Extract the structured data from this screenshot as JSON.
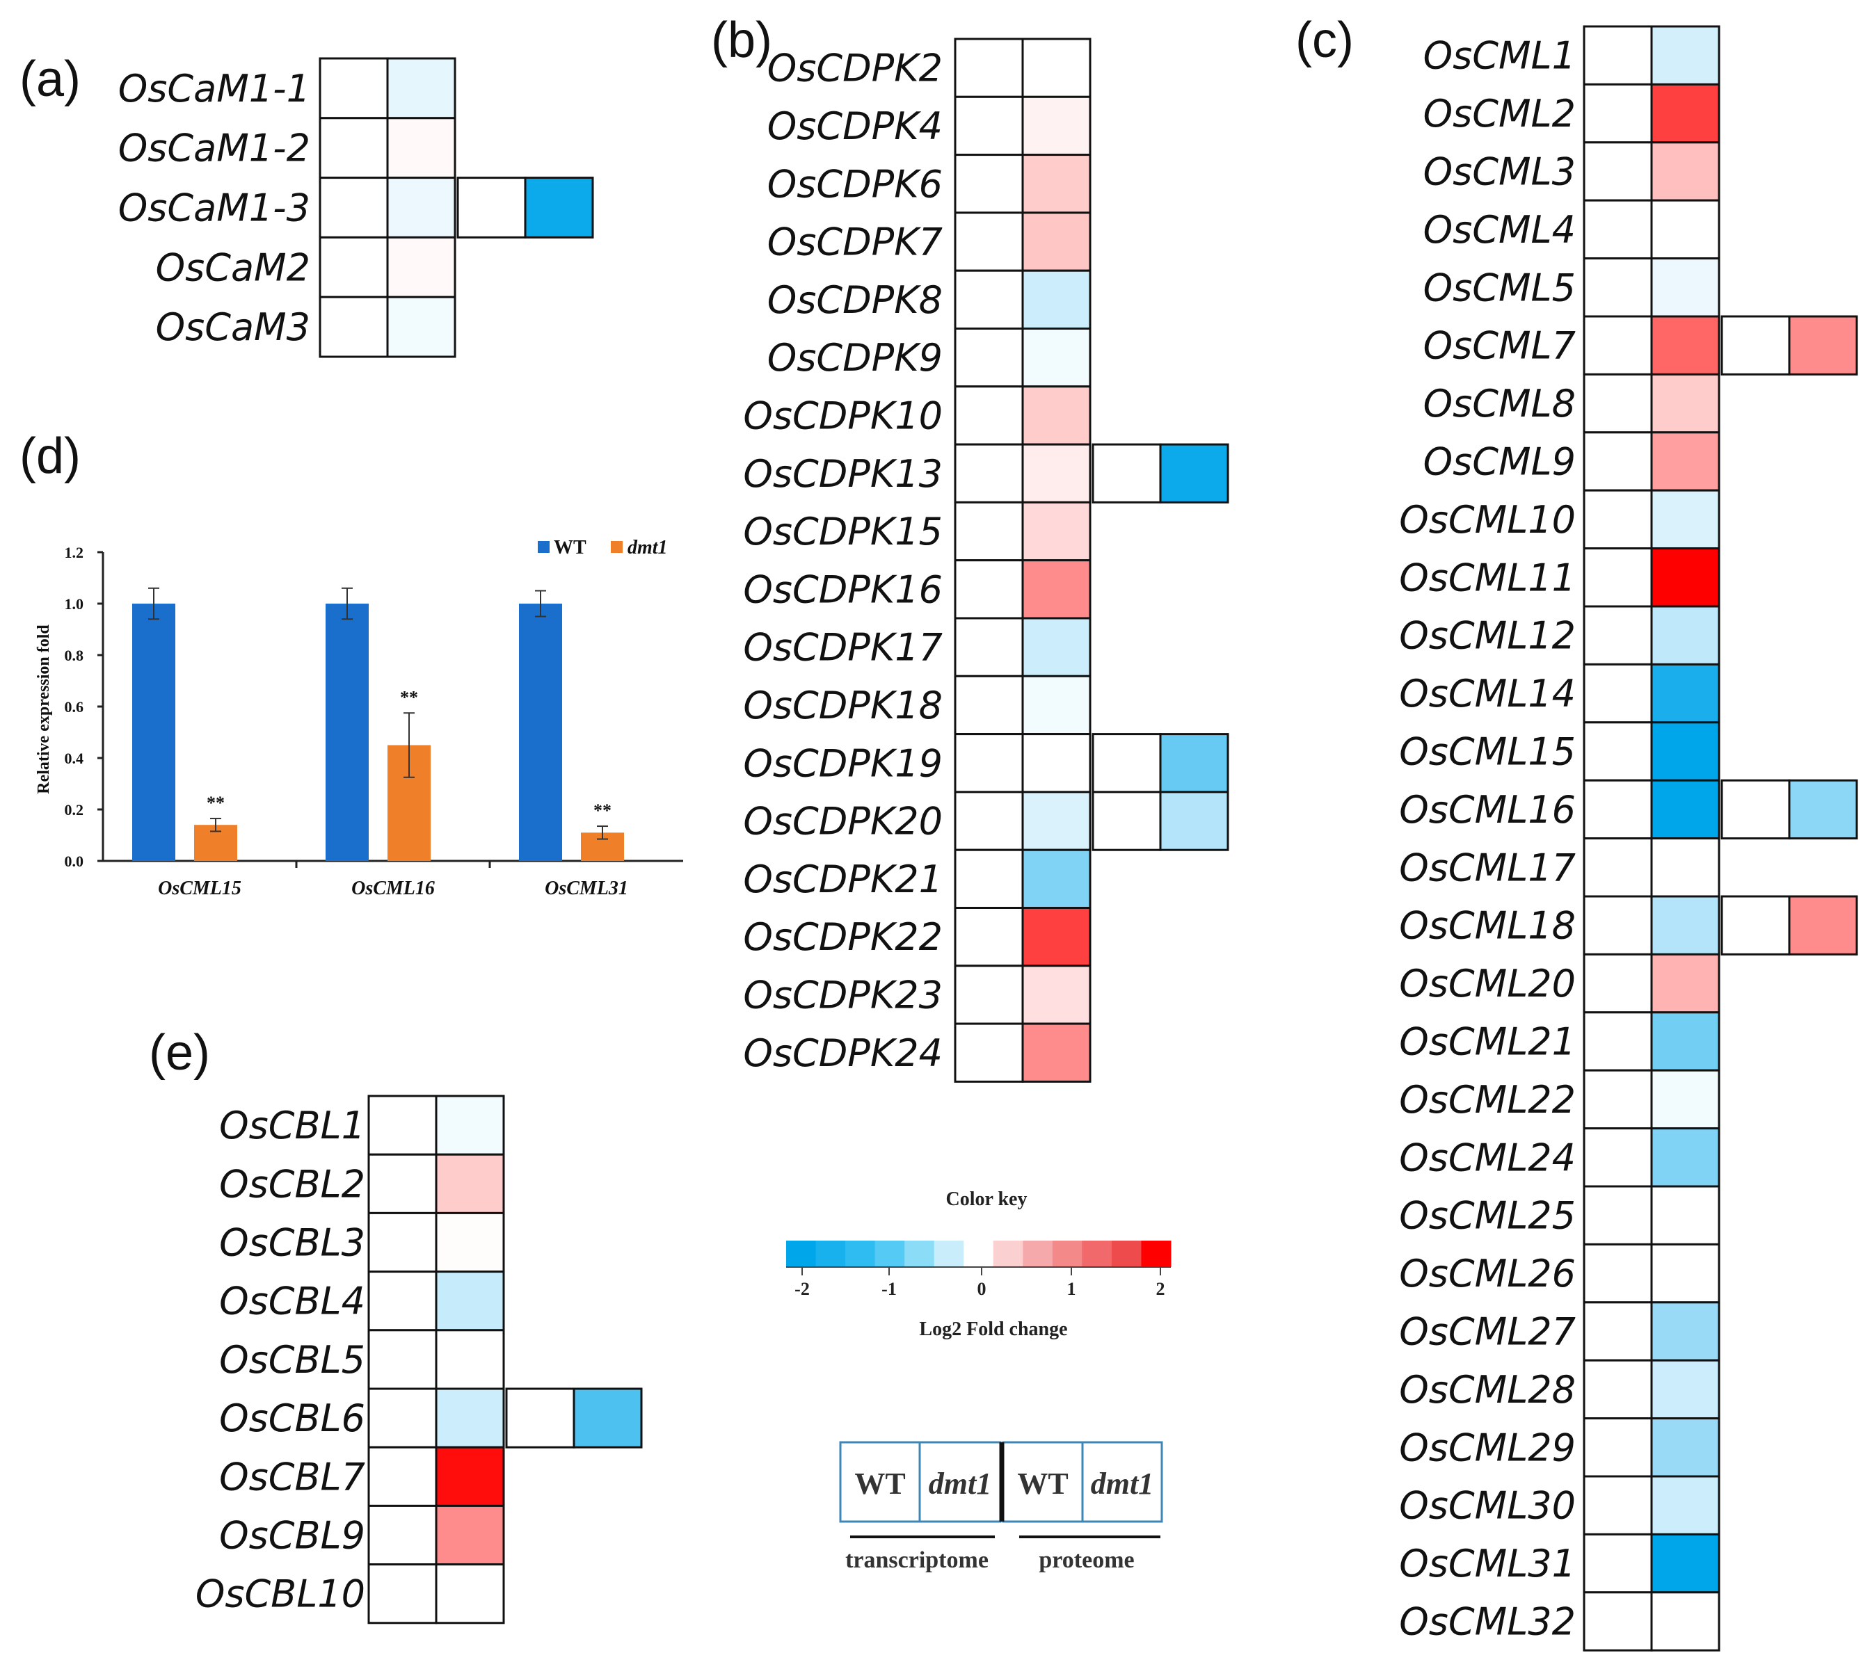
{
  "panels": {
    "a": {
      "label": "(a)"
    },
    "b": {
      "label": "(b)"
    },
    "c": {
      "label": "(c)"
    },
    "d": {
      "label": "(d)"
    },
    "e": {
      "label": "(e)"
    }
  },
  "chart_data": [
    {
      "type": "heatmap",
      "panel": "(a)",
      "columns": [
        "WT transcriptome",
        "dmt1 transcriptome",
        "WT proteome",
        "dmt1 proteome"
      ],
      "rows": [
        {
          "gene": "OsCaM1-1",
          "values": [
            0,
            -0.2,
            null,
            null
          ]
        },
        {
          "gene": "OsCaM1-2",
          "values": [
            0,
            0.05,
            null,
            null
          ]
        },
        {
          "gene": "OsCaM1-3",
          "values": [
            0,
            -0.15,
            0,
            -1.9
          ]
        },
        {
          "gene": "OsCaM2",
          "values": [
            0,
            0.05,
            null,
            null
          ]
        },
        {
          "gene": "OsCaM3",
          "values": [
            0,
            -0.1,
            null,
            null
          ]
        }
      ]
    },
    {
      "type": "heatmap",
      "panel": "(b)",
      "columns": [
        "WT transcriptome",
        "dmt1 transcriptome",
        "WT proteome",
        "dmt1 proteome"
      ],
      "rows": [
        {
          "gene": "OsCDPK2",
          "values": [
            0,
            0,
            null,
            null
          ]
        },
        {
          "gene": "OsCDPK4",
          "values": [
            0,
            0.1,
            null,
            null
          ]
        },
        {
          "gene": "OsCDPK6",
          "values": [
            0,
            0.4,
            null,
            null
          ]
        },
        {
          "gene": "OsCDPK7",
          "values": [
            0,
            0.45,
            null,
            null
          ]
        },
        {
          "gene": "OsCDPK8",
          "values": [
            0,
            -0.4,
            null,
            null
          ]
        },
        {
          "gene": "OsCDPK9",
          "values": [
            0,
            -0.1,
            null,
            null
          ]
        },
        {
          "gene": "OsCDPK10",
          "values": [
            0,
            0.4,
            null,
            null
          ]
        },
        {
          "gene": "OsCDPK13",
          "values": [
            0,
            0.15,
            0,
            -1.9
          ]
        },
        {
          "gene": "OsCDPK15",
          "values": [
            0,
            0.3,
            null,
            null
          ]
        },
        {
          "gene": "OsCDPK16",
          "values": [
            0,
            0.9,
            null,
            null
          ]
        },
        {
          "gene": "OsCDPK17",
          "values": [
            0,
            -0.4,
            null,
            null
          ]
        },
        {
          "gene": "OsCDPK18",
          "values": [
            0,
            -0.1,
            null,
            null
          ]
        },
        {
          "gene": "OsCDPK19",
          "values": [
            0,
            0,
            0,
            -1.2
          ]
        },
        {
          "gene": "OsCDPK20",
          "values": [
            0,
            -0.3,
            0,
            -0.6
          ]
        },
        {
          "gene": "OsCDPK21",
          "values": [
            0,
            -1.0,
            null,
            null
          ]
        },
        {
          "gene": "OsCDPK22",
          "values": [
            0,
            1.5,
            null,
            null
          ]
        },
        {
          "gene": "OsCDPK23",
          "values": [
            0,
            0.25,
            null,
            null
          ]
        },
        {
          "gene": "OsCDPK24",
          "values": [
            0,
            0.9,
            null,
            null
          ]
        }
      ]
    },
    {
      "type": "heatmap",
      "panel": "(c)",
      "columns": [
        "WT transcriptome",
        "dmt1 transcriptome",
        "WT proteome",
        "dmt1 proteome"
      ],
      "rows": [
        {
          "gene": "OsCML1",
          "values": [
            0,
            -0.35,
            null,
            null
          ]
        },
        {
          "gene": "OsCML2",
          "values": [
            0,
            1.5,
            null,
            null
          ]
        },
        {
          "gene": "OsCML3",
          "values": [
            0,
            0.5,
            null,
            null
          ]
        },
        {
          "gene": "OsCML4",
          "values": [
            0,
            0,
            null,
            null
          ]
        },
        {
          "gene": "OsCML5",
          "values": [
            0,
            -0.15,
            null,
            null
          ]
        },
        {
          "gene": "OsCML7",
          "values": [
            0,
            1.2,
            0,
            0.9
          ]
        },
        {
          "gene": "OsCML8",
          "values": [
            0,
            0.4,
            null,
            null
          ]
        },
        {
          "gene": "OsCML9",
          "values": [
            0,
            0.75,
            null,
            null
          ]
        },
        {
          "gene": "OsCML10",
          "values": [
            0,
            -0.3,
            null,
            null
          ]
        },
        {
          "gene": "OsCML11",
          "values": [
            0,
            2.0,
            null,
            null
          ]
        },
        {
          "gene": "OsCML12",
          "values": [
            0,
            -0.5,
            null,
            null
          ]
        },
        {
          "gene": "OsCML14",
          "values": [
            0,
            -1.8,
            null,
            null
          ]
        },
        {
          "gene": "OsCML15",
          "values": [
            0,
            -2.0,
            null,
            null
          ]
        },
        {
          "gene": "OsCML16",
          "values": [
            0,
            -2.0,
            0,
            -0.9
          ]
        },
        {
          "gene": "OsCML17",
          "values": [
            0,
            0,
            null,
            null
          ]
        },
        {
          "gene": "OsCML18",
          "values": [
            0,
            -0.6,
            0,
            0.9
          ]
        },
        {
          "gene": "OsCML20",
          "values": [
            0,
            0.6,
            null,
            null
          ]
        },
        {
          "gene": "OsCML21",
          "values": [
            0,
            -1.1,
            null,
            null
          ]
        },
        {
          "gene": "OsCML22",
          "values": [
            0,
            -0.1,
            null,
            null
          ]
        },
        {
          "gene": "OsCML24",
          "values": [
            0,
            -1.0,
            null,
            null
          ]
        },
        {
          "gene": "OsCML25",
          "values": [
            0,
            0,
            null,
            null
          ]
        },
        {
          "gene": "OsCML26",
          "values": [
            0,
            0,
            null,
            null
          ]
        },
        {
          "gene": "OsCML27",
          "values": [
            0,
            -0.8,
            null,
            null
          ]
        },
        {
          "gene": "OsCML28",
          "values": [
            0,
            -0.4,
            null,
            null
          ]
        },
        {
          "gene": "OsCML29",
          "values": [
            0,
            -0.8,
            null,
            null
          ]
        },
        {
          "gene": "OsCML30",
          "values": [
            0,
            -0.4,
            null,
            null
          ]
        },
        {
          "gene": "OsCML31",
          "values": [
            0,
            -2.2,
            null,
            null
          ]
        },
        {
          "gene": "OsCML32",
          "values": [
            0,
            0,
            null,
            null
          ]
        }
      ]
    },
    {
      "type": "heatmap",
      "panel": "(e)",
      "columns": [
        "WT transcriptome",
        "dmt1 transcriptome",
        "WT proteome",
        "dmt1 proteome"
      ],
      "rows": [
        {
          "gene": "OsCBL1",
          "values": [
            0,
            -0.1,
            null,
            null
          ]
        },
        {
          "gene": "OsCBL2",
          "values": [
            0,
            0.4,
            null,
            null
          ]
        },
        {
          "gene": "OsCBL3",
          "values": [
            0,
            0.02,
            null,
            null
          ]
        },
        {
          "gene": "OsCBL4",
          "values": [
            0,
            -0.45,
            null,
            null
          ]
        },
        {
          "gene": "OsCBL5",
          "values": [
            0,
            0,
            null,
            null
          ]
        },
        {
          "gene": "OsCBL6",
          "values": [
            0,
            -0.4,
            0,
            -1.4
          ]
        },
        {
          "gene": "OsCBL7",
          "values": [
            0,
            1.9,
            null,
            null
          ]
        },
        {
          "gene": "OsCBL9",
          "values": [
            0,
            0.9,
            null,
            null
          ]
        },
        {
          "gene": "OsCBL10",
          "values": [
            0,
            0,
            null,
            null
          ]
        }
      ]
    },
    {
      "type": "bar",
      "panel": "(d)",
      "categories": [
        "OsCML15",
        "OsCML16",
        "OsCML31"
      ],
      "series": [
        {
          "name": "WT",
          "color": "#1a6fcc",
          "values": [
            1.0,
            1.0,
            1.0
          ],
          "errors": [
            0.06,
            0.06,
            0.05
          ],
          "annotations": [
            "",
            "",
            ""
          ]
        },
        {
          "name": "dmt1",
          "color": "#f07f2a",
          "values": [
            0.14,
            0.45,
            0.11
          ],
          "errors": [
            0.025,
            0.125,
            0.025
          ],
          "annotations": [
            "**",
            "**",
            "**"
          ]
        }
      ],
      "ylabel": "Relative expression fold",
      "ylim": [
        0,
        1.2
      ],
      "yticks": [
        "0.0",
        "0.2",
        "0.4",
        "0.6",
        "0.8",
        "1.0",
        "1.2"
      ]
    }
  ],
  "color_key": {
    "title": "Color key",
    "xlabel": "Log2 Fold change",
    "ticks": [
      "-2",
      "-1",
      "0",
      "1",
      "2"
    ],
    "colors": [
      "#00a6ea",
      "#18b1ee",
      "#2fbdf1",
      "#55caf4",
      "#8adcf7",
      "#c9edfa",
      "#ffffff",
      "#fbd0d0",
      "#f6a9ab",
      "#f4898a",
      "#f1696a",
      "#ee4c4c",
      "#ff0000"
    ]
  },
  "omics_legend": {
    "cells": [
      "WT",
      "dmt1",
      "WT",
      "dmt1"
    ],
    "labels": [
      "transcriptome",
      "proteome"
    ]
  }
}
